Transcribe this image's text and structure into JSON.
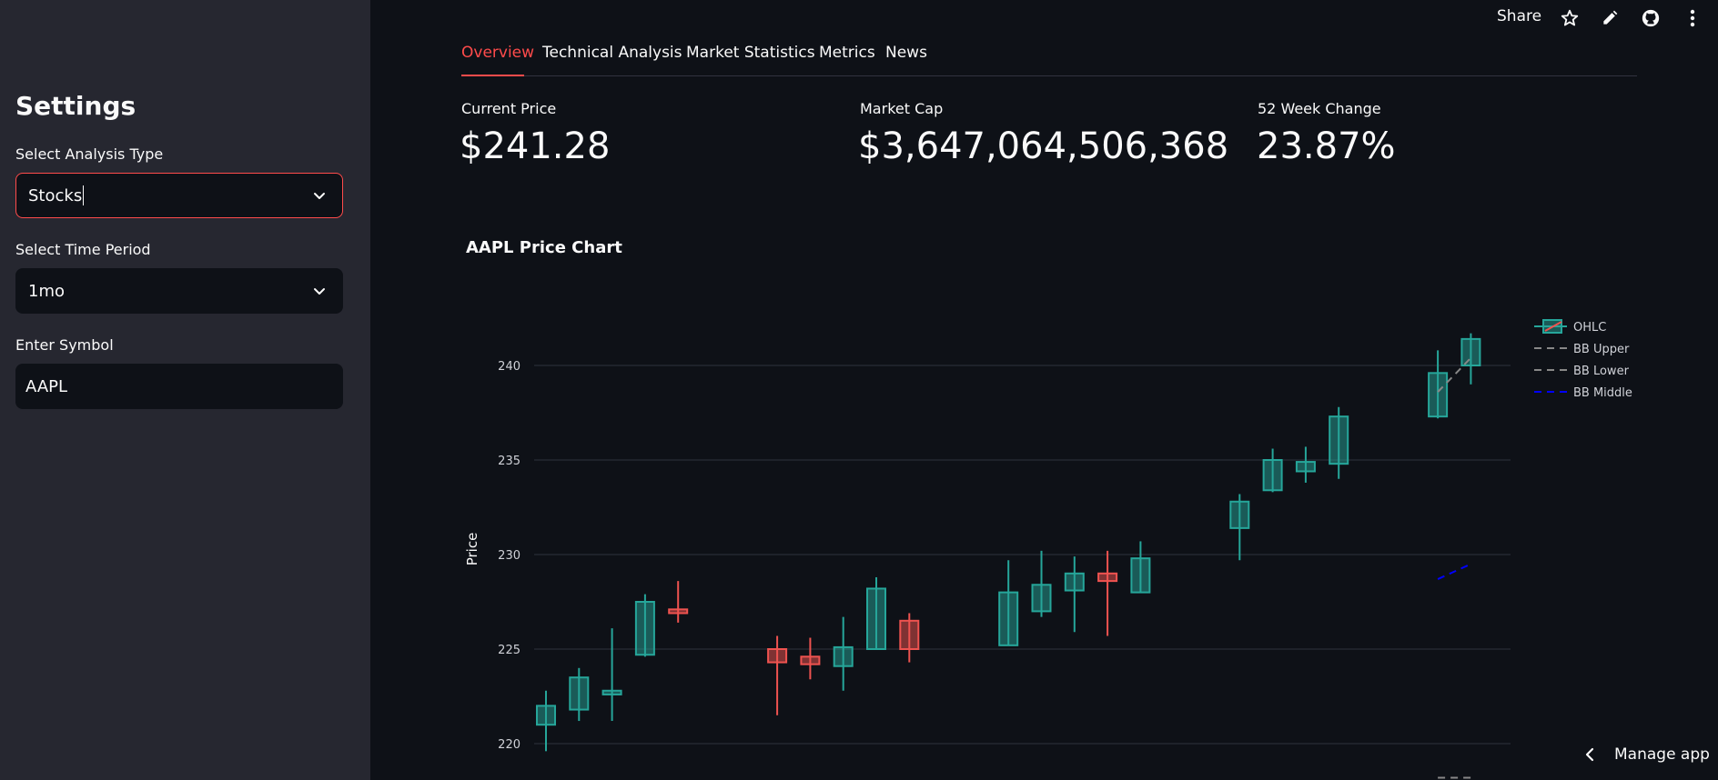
{
  "sidebar": {
    "title": "Settings",
    "analysis_type": {
      "label": "Select Analysis Type",
      "value": "Stocks"
    },
    "time_period": {
      "label": "Select Time Period",
      "value": "1mo"
    },
    "symbol": {
      "label": "Enter Symbol",
      "value": "AAPL"
    }
  },
  "topbar": {
    "share_label": "Share"
  },
  "tabs": [
    "Overview",
    "Technical Analysis",
    "Market Statistics",
    "Metrics",
    "News"
  ],
  "metrics": [
    {
      "label": "Current Price",
      "value": "$241.28"
    },
    {
      "label": "Market Cap",
      "value": "$3,647,064,506,368"
    },
    {
      "label": "52 Week Change",
      "value": "23.87%"
    }
  ],
  "chart_title": "AAPL Price Chart",
  "manage_label": "Manage app",
  "colors": {
    "accent": "#ff4b4b",
    "up": "#26a69a",
    "down": "#ef5350",
    "bb_middle": "#0000ff",
    "bb_band": "#888888"
  },
  "chart_data": {
    "type": "candlestick",
    "ylabel": "Price",
    "yticks": [
      220,
      225,
      230,
      235,
      240
    ],
    "ylim": [
      219.2,
      242.3
    ],
    "legend": [
      "OHLC",
      "BB Upper",
      "BB Lower",
      "BB Middle"
    ],
    "legend_position": "top-right",
    "candles": [
      {
        "o": 221.0,
        "h": 222.8,
        "l": 219.6,
        "c": 222.0
      },
      {
        "o": 221.8,
        "h": 224.0,
        "l": 221.2,
        "c": 223.5
      },
      {
        "o": 222.6,
        "h": 226.1,
        "l": 221.2,
        "c": 222.8
      },
      {
        "o": 224.7,
        "h": 227.9,
        "l": 224.6,
        "c": 227.5
      },
      {
        "o": 227.1,
        "h": 228.6,
        "l": 226.4,
        "c": 226.9
      },
      null,
      null,
      {
        "o": 225.0,
        "h": 225.7,
        "l": 221.5,
        "c": 224.3
      },
      {
        "o": 224.6,
        "h": 225.6,
        "l": 223.4,
        "c": 224.2
      },
      {
        "o": 224.1,
        "h": 226.7,
        "l": 222.8,
        "c": 225.1
      },
      {
        "o": 225.0,
        "h": 228.8,
        "l": 225.0,
        "c": 228.2
      },
      {
        "o": 226.5,
        "h": 226.9,
        "l": 224.3,
        "c": 225.0
      },
      null,
      null,
      {
        "o": 225.2,
        "h": 229.7,
        "l": 225.2,
        "c": 228.0
      },
      {
        "o": 227.0,
        "h": 230.2,
        "l": 226.7,
        "c": 228.4
      },
      {
        "o": 228.1,
        "h": 229.9,
        "l": 225.9,
        "c": 229.0
      },
      {
        "o": 229.0,
        "h": 230.2,
        "l": 225.7,
        "c": 228.6
      },
      {
        "o": 228.0,
        "h": 230.7,
        "l": 228.0,
        "c": 229.8
      },
      null,
      null,
      {
        "o": 231.4,
        "h": 233.2,
        "l": 229.7,
        "c": 232.8
      },
      {
        "o": 233.4,
        "h": 235.6,
        "l": 233.3,
        "c": 235.0
      },
      {
        "o": 234.4,
        "h": 235.7,
        "l": 233.8,
        "c": 234.9
      },
      {
        "o": 234.8,
        "h": 237.8,
        "l": 234.0,
        "c": 237.3
      },
      null,
      null,
      {
        "o": 237.3,
        "h": 240.8,
        "l": 237.2,
        "c": 239.6
      },
      {
        "o": 240.0,
        "h": 241.7,
        "l": 239.0,
        "c": 241.4
      }
    ],
    "bb_upper": [
      {
        "i": 27,
        "v": 238.6
      },
      {
        "i": 28,
        "v": 240.4
      }
    ],
    "bb_middle": [
      {
        "i": 27,
        "v": 228.7
      },
      {
        "i": 28,
        "v": 229.5
      }
    ],
    "bb_lower": [
      {
        "i": 27,
        "v": 218.2
      },
      {
        "i": 28,
        "v": 218.2
      }
    ]
  }
}
